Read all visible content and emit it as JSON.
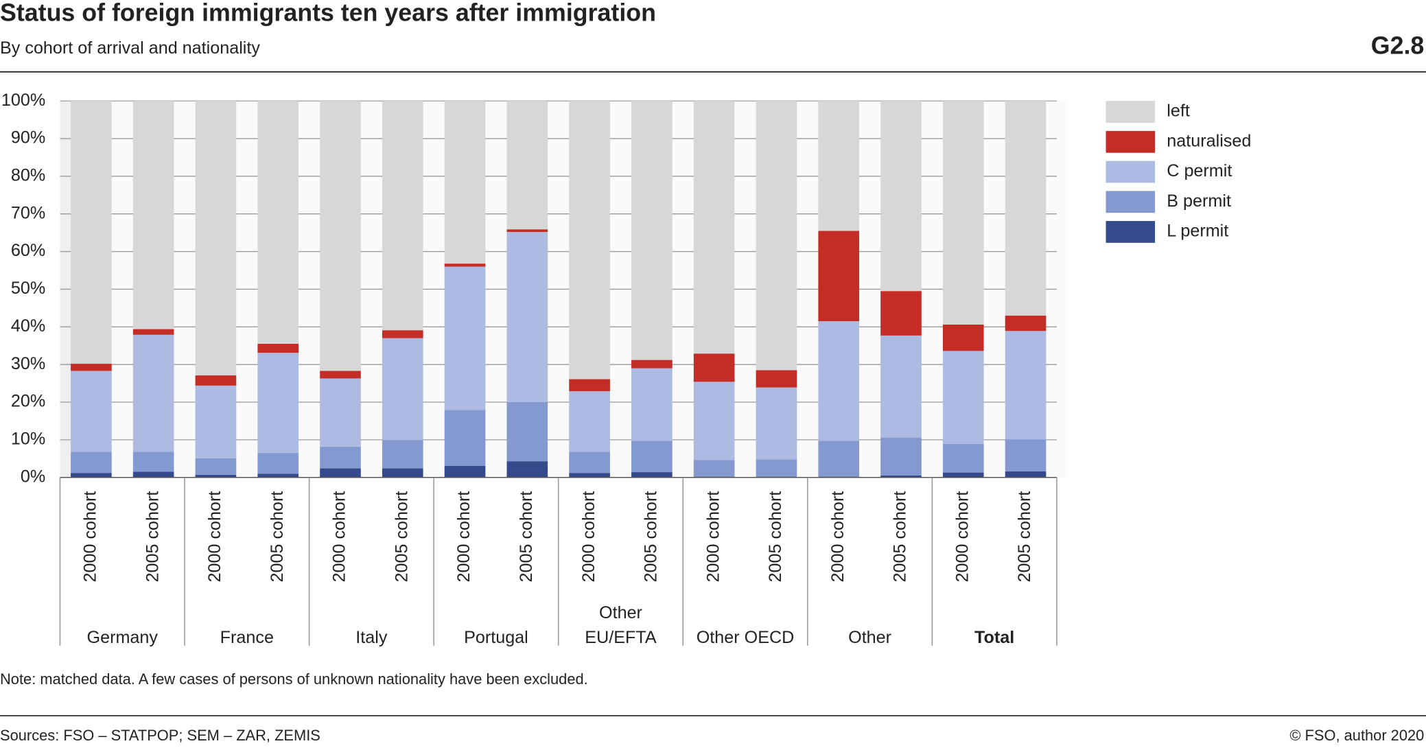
{
  "chart_data": {
    "type": "stacked_bar",
    "title": "Status of foreign immigrants ten years after immigration",
    "subtitle": "By cohort of arrival and nationality",
    "code": "G2.8",
    "note": "Note: matched data. A few cases of persons of unknown nationality have been excluded.",
    "sources": "Sources: FSO – STATPOP; SEM – ZAR, ZEMIS",
    "copyright": "© FSO, author 2020",
    "categories": [
      "2000 cohort",
      "2005 cohort",
      "2000 cohort",
      "2005 cohort",
      "2000 cohort",
      "2005 cohort",
      "2000 cohort",
      "2005 cohort",
      "2000 cohort",
      "2005 cohort",
      "2000 cohort",
      "2005 cohort",
      "2000 cohort",
      "2005 cohort",
      "2000 cohort",
      "2005 cohort"
    ],
    "groups": [
      [
        "Germany"
      ],
      [
        "France"
      ],
      [
        "Italy"
      ],
      [
        "Portugal"
      ],
      [
        "Other",
        "EU/EFTA"
      ],
      [
        "Other OECD"
      ],
      [
        "Other"
      ],
      [
        "Total"
      ]
    ],
    "series": [
      {
        "name": "L permit",
        "color": "#354a8a",
        "values": [
          1.2,
          1.5,
          0.7,
          1.0,
          2.4,
          2.4,
          3.1,
          4.3,
          1.2,
          1.4,
          0.2,
          0.2,
          0.2,
          0.5,
          1.3,
          1.6
        ]
      },
      {
        "name": "B permit",
        "color": "#8499cf",
        "values": [
          5.6,
          5.3,
          4.4,
          5.5,
          5.8,
          7.5,
          14.8,
          15.7,
          5.6,
          8.3,
          4.4,
          4.6,
          9.5,
          10.1,
          7.6,
          8.5
        ]
      },
      {
        "name": "C permit",
        "color": "#adbbe2",
        "values": [
          21.5,
          31.1,
          19.3,
          26.6,
          18.1,
          27.1,
          38.1,
          45.2,
          16.1,
          19.3,
          20.8,
          19.1,
          31.8,
          27.1,
          24.7,
          28.8
        ]
      },
      {
        "name": "naturalised",
        "color": "#c42d25",
        "values": [
          1.9,
          1.5,
          2.7,
          2.4,
          2.0,
          2.1,
          0.8,
          0.7,
          3.2,
          2.2,
          7.5,
          4.6,
          24.0,
          11.8,
          7.0,
          4.1
        ]
      },
      {
        "name": "left",
        "color": "#d6d7d7",
        "values": [
          69.8,
          60.6,
          72.9,
          64.5,
          71.7,
          60.9,
          43.2,
          34.1,
          73.9,
          68.8,
          67.1,
          71.5,
          34.5,
          50.5,
          59.4,
          57.0
        ]
      }
    ],
    "ylim": [
      0,
      100
    ],
    "yticks": [
      {
        "value": 0,
        "label": "0%"
      },
      {
        "value": 10,
        "label": "10%"
      },
      {
        "value": 20,
        "label": "20%"
      },
      {
        "value": 30,
        "label": "30%"
      },
      {
        "value": 40,
        "label": "40%"
      },
      {
        "value": 50,
        "label": "50%"
      },
      {
        "value": 60,
        "label": "60%"
      },
      {
        "value": 70,
        "label": "70%"
      },
      {
        "value": 80,
        "label": "80%"
      },
      {
        "value": 90,
        "label": "90%"
      },
      {
        "value": 100,
        "label": "100%"
      }
    ],
    "grid": true,
    "legend": "right"
  }
}
